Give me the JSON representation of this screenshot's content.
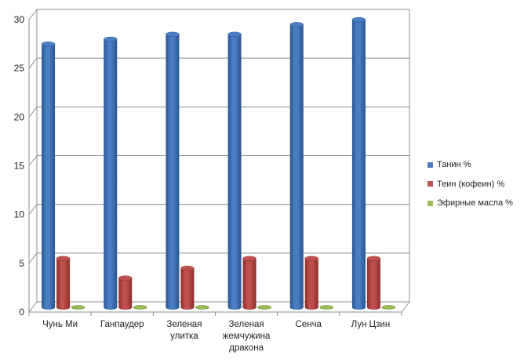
{
  "chart_data": {
    "type": "bar",
    "categories": [
      "Чунь Ми",
      "Ганпаудер",
      "Зеленая улитка",
      "Зеленая жемчужина дракона",
      "Сенча",
      "Лун Цзин"
    ],
    "category_lines": [
      [
        "Чунь Ми"
      ],
      [
        "Ганпаудер"
      ],
      [
        "Зеленая",
        "улитка"
      ],
      [
        "Зеленая",
        "жемчужина",
        "дракона"
      ],
      [
        "Сенча"
      ],
      [
        "Лун Цзин"
      ]
    ],
    "series": [
      {
        "name": "Танин %",
        "color": "#4a7ec4",
        "dark": "#2a558f",
        "values": [
          27,
          27.5,
          28,
          28,
          29,
          29.5
        ]
      },
      {
        "name": "Теин (кофеин)  %",
        "color": "#c0504d",
        "dark": "#8c2f2c",
        "values": [
          5,
          3,
          4,
          5,
          5,
          5
        ]
      },
      {
        "name": "Эфирные масла %",
        "color": "#9bbb59",
        "dark": "#6b8a30",
        "values": [
          0,
          0,
          0,
          0,
          0,
          0
        ]
      }
    ],
    "ylim": [
      0,
      30
    ],
    "yticks": [
      "0",
      "5",
      "10",
      "15",
      "20",
      "25",
      "30"
    ],
    "grid": true,
    "legend": "right",
    "title": "",
    "xlabel": "",
    "ylabel": "",
    "style": "3d-cylinder"
  }
}
